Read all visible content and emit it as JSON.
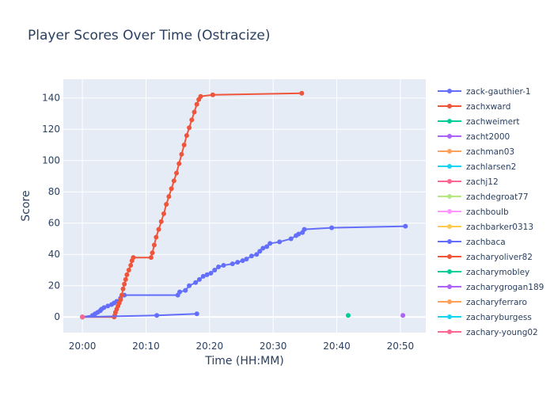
{
  "chart_data": {
    "type": "line",
    "title": "Player Scores Over Time (Ostracize)",
    "xlabel": "Time (HH:MM)",
    "ylabel": "Score",
    "x_unit": "minutes after 20:00",
    "xlim": [
      -3,
      54
    ],
    "ylim": [
      -10,
      152
    ],
    "x_ticks": [
      {
        "value": 0,
        "label": "20:00"
      },
      {
        "value": 10,
        "label": "20:10"
      },
      {
        "value": 20,
        "label": "20:20"
      },
      {
        "value": 30,
        "label": "20:30"
      },
      {
        "value": 40,
        "label": "20:40"
      },
      {
        "value": 50,
        "label": "20:50"
      }
    ],
    "y_ticks": [
      0,
      20,
      40,
      60,
      80,
      100,
      120,
      140
    ],
    "grid": true,
    "plot_background": "#E5ECF6",
    "legend_position": "right",
    "series": [
      {
        "name": "zack-gauthier-1",
        "color": "#636efa",
        "x": [
          0,
          1.6,
          2.0,
          2.4,
          2.8,
          3.0,
          3.4,
          4.0,
          4.6,
          5.0,
          5.4,
          6.0,
          6.6,
          15.0,
          15.3,
          16.2,
          16.8,
          17.8,
          18.4,
          19.0,
          19.6,
          20.2,
          20.8,
          21.4,
          22.2,
          23.6,
          24.4,
          25.2,
          25.8,
          26.6,
          27.4,
          27.9,
          28.4,
          29.0,
          29.5,
          31.0,
          32.8,
          33.6,
          34.0,
          34.6,
          34.9,
          39.2,
          50.8
        ],
        "y": [
          0,
          1,
          2,
          3,
          4,
          5,
          6,
          7,
          8,
          9,
          10,
          12,
          14,
          14,
          16,
          17,
          20,
          22,
          24,
          26,
          27,
          28,
          30,
          32,
          33,
          34,
          35,
          36,
          37,
          39,
          40,
          42,
          44,
          45,
          47,
          48,
          50,
          52,
          53,
          54,
          56,
          57,
          58
        ]
      },
      {
        "name": "zachxward",
        "color": "#EF553B",
        "x": [
          0,
          5.0,
          5.1,
          5.2,
          5.4,
          5.6,
          5.8,
          6.0,
          6.2,
          6.4,
          6.6,
          6.8,
          7.0,
          7.3,
          7.6,
          7.8,
          8.0,
          10.8,
          11.0,
          11.3,
          11.6,
          12.0,
          12.4,
          12.8,
          13.2,
          13.6,
          14.0,
          14.4,
          14.8,
          15.2,
          15.6,
          16.0,
          16.4,
          16.8,
          17.2,
          17.6,
          18.0,
          18.3,
          18.6,
          20.5,
          34.5
        ],
        "y": [
          0,
          0,
          1,
          3,
          5,
          7,
          9,
          11,
          14,
          18,
          21,
          24,
          27,
          30,
          33,
          36,
          38,
          38,
          41,
          46,
          51,
          56,
          61,
          66,
          72,
          77,
          82,
          87,
          92,
          98,
          104,
          110,
          116,
          121,
          126,
          131,
          136,
          139,
          141,
          142,
          143
        ]
      },
      {
        "name": "zachweimert",
        "color": "#00cc96",
        "x": [
          41.8
        ],
        "y": [
          1
        ]
      },
      {
        "name": "zacht2000",
        "color": "#ab63fa",
        "x": [
          50.4
        ],
        "y": [
          1
        ]
      },
      {
        "name": "zachman03",
        "color": "#FFA15A",
        "x": [
          0
        ],
        "y": [
          0
        ]
      },
      {
        "name": "zachlarsen2",
        "color": "#19d3f3",
        "x": [
          0
        ],
        "y": [
          0
        ]
      },
      {
        "name": "zachj12",
        "color": "#FF6692",
        "x": [
          0
        ],
        "y": [
          0
        ]
      },
      {
        "name": "zachdegroat77",
        "color": "#B6E880",
        "x": [
          0
        ],
        "y": [
          0
        ]
      },
      {
        "name": "zachboulb",
        "color": "#FF97FF",
        "x": [
          0
        ],
        "y": [
          0
        ]
      },
      {
        "name": "zachbarker0313",
        "color": "#FECB52",
        "x": [
          0
        ],
        "y": [
          0
        ]
      },
      {
        "name": "zachbaca",
        "color": "#636efa",
        "x": [
          0,
          11.7,
          18.0
        ],
        "y": [
          0,
          1,
          2
        ]
      },
      {
        "name": "zacharyoliver82",
        "color": "#EF553B",
        "x": [
          0
        ],
        "y": [
          0
        ]
      },
      {
        "name": "zacharymobley",
        "color": "#00cc96",
        "x": [
          0
        ],
        "y": [
          0
        ]
      },
      {
        "name": "zacharygrogan189",
        "color": "#ab63fa",
        "x": [
          0
        ],
        "y": [
          0
        ]
      },
      {
        "name": "zacharyferraro",
        "color": "#FFA15A",
        "x": [
          0
        ],
        "y": [
          0
        ]
      },
      {
        "name": "zacharyburgess",
        "color": "#19d3f3",
        "x": [
          0
        ],
        "y": [
          0
        ]
      },
      {
        "name": "zachary-young02",
        "color": "#FF6692",
        "x": [
          0
        ],
        "y": [
          0
        ]
      }
    ]
  }
}
